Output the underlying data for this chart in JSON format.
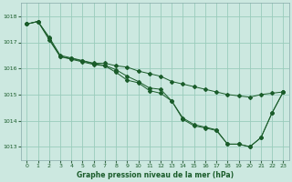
{
  "title": "Graphe pression niveau de la mer (hPa)",
  "bg_color": "#cce8e0",
  "grid_color": "#99ccbb",
  "line_color": "#1a5c2a",
  "xlim": [
    -0.5,
    23.5
  ],
  "ylim": [
    1012.5,
    1018.5
  ],
  "yticks": [
    1013,
    1014,
    1015,
    1016,
    1017,
    1018
  ],
  "xticks": [
    0,
    1,
    2,
    3,
    4,
    5,
    6,
    7,
    8,
    9,
    10,
    11,
    12,
    13,
    14,
    15,
    16,
    17,
    18,
    19,
    20,
    21,
    22,
    23
  ],
  "series1": [
    1017.7,
    1017.8,
    1017.2,
    1016.5,
    1016.4,
    1016.3,
    1016.2,
    1016.2,
    1016.1,
    1016.05,
    1015.9,
    1015.8,
    1015.7,
    1015.5,
    1015.4,
    1015.3,
    1015.2,
    1015.1,
    1015.0,
    1014.95,
    1014.9,
    1015.0,
    1015.05,
    1015.1
  ],
  "series2": [
    1017.7,
    1017.8,
    1017.15,
    1016.45,
    1016.38,
    1016.28,
    1016.18,
    1016.12,
    1015.95,
    1015.7,
    1015.5,
    1015.25,
    1015.2,
    1014.75,
    1014.1,
    1013.85,
    1013.75,
    1013.65,
    1013.1,
    1013.1,
    1013.0,
    1013.35,
    1014.3,
    1015.1
  ],
  "series3": [
    1017.7,
    1017.8,
    1017.1,
    1016.45,
    1016.35,
    1016.25,
    1016.15,
    1016.1,
    1015.85,
    1015.55,
    1015.45,
    1015.15,
    1015.05,
    1014.75,
    1014.05,
    1013.8,
    1013.72,
    1013.62,
    1013.1,
    1013.1,
    1013.0,
    1013.35,
    1014.3,
    1015.1
  ]
}
